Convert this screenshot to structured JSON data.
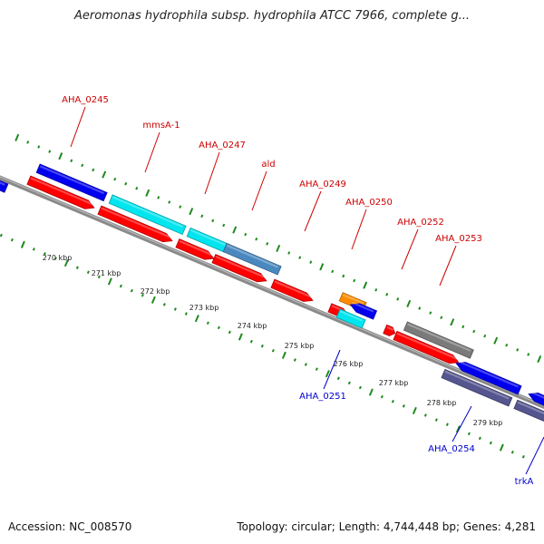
{
  "title": "Aeromonas hydrophila subsp. hydrophila ATCC 7966, complete g...",
  "footer": {
    "accession": "Accession: NC_008570",
    "topology": "Topology: circular; Length: 4,744,448 bp; Genes: 4,281"
  },
  "colors": {
    "backbone": "#8a8a8a",
    "tick": "#1f8a1f",
    "cds": "#ff0000",
    "blue": "#0000ee",
    "cyan": "#00e5ee",
    "steelblue": "#4a88c0",
    "orange": "#ff8c00",
    "gray": "#7a7a7a",
    "darkslate": "#55558f",
    "label_red": "#cc0000",
    "label_blue": "#0000cc"
  },
  "kbp_labels": [
    "270 kbp",
    "271 kbp",
    "272 kbp",
    "273 kbp",
    "274 kbp",
    "275 kbp",
    "276 kbp",
    "277 kbp",
    "278 kbp",
    "279 kbp"
  ],
  "gene_labels": [
    {
      "name": "AHA_0245",
      "side": "top"
    },
    {
      "name": "mmsA-1",
      "side": "top"
    },
    {
      "name": "AHA_0247",
      "side": "top"
    },
    {
      "name": "ald",
      "side": "top"
    },
    {
      "name": "AHA_0249",
      "side": "top"
    },
    {
      "name": "AHA_0250",
      "side": "top"
    },
    {
      "name": "AHA_0252",
      "side": "top"
    },
    {
      "name": "AHA_0253",
      "side": "top"
    },
    {
      "name": "AHA_0251",
      "side": "bottom"
    },
    {
      "name": "AHA_0254",
      "side": "bottom"
    },
    {
      "name": "trkA",
      "side": "bottom"
    }
  ]
}
